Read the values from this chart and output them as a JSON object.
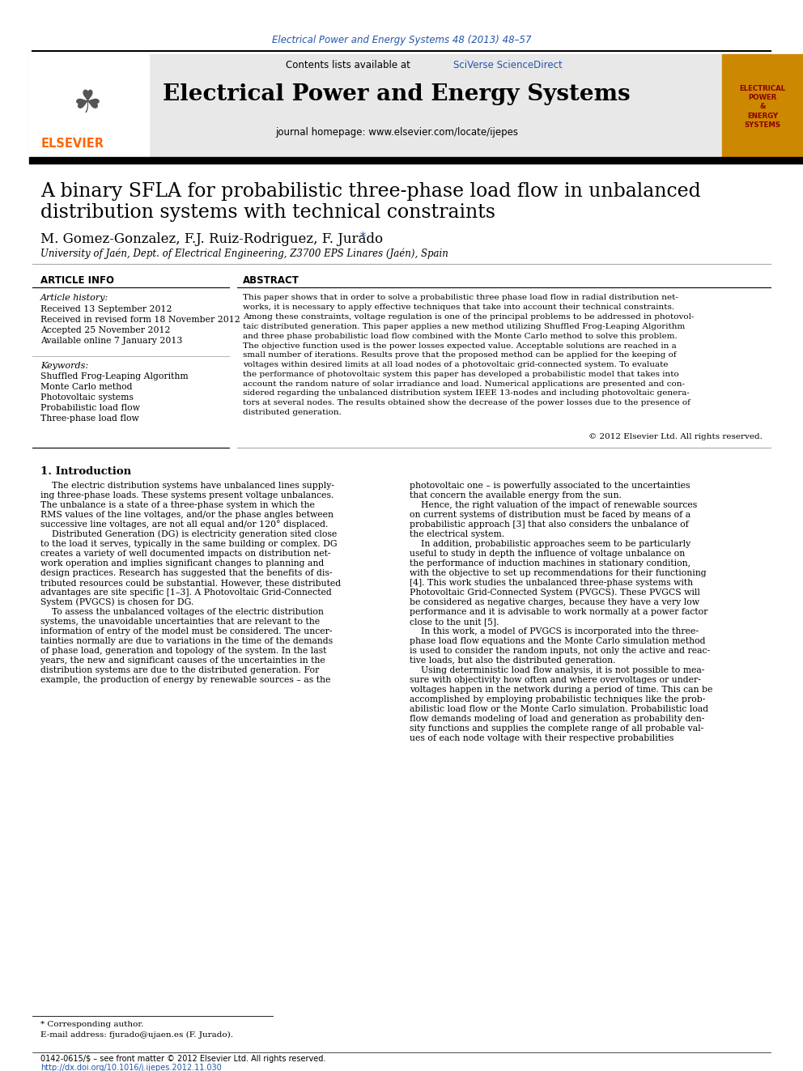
{
  "journal_ref": "Electrical Power and Energy Systems 48 (2013) 48–57",
  "journal_ref_color": "#2255aa",
  "contents_line": "Contents lists available at",
  "sciverse_text": "SciVerse ScienceDirect",
  "sciverse_color": "#2255aa",
  "journal_title": "Electrical Power and Energy Systems",
  "journal_homepage": "journal homepage: www.elsevier.com/locate/ijepes",
  "header_bg": "#e8e8e8",
  "paper_title_line1": "A binary SFLA for probabilistic three-phase load flow in unbalanced",
  "paper_title_line2": "distribution systems with technical constraints",
  "authors": "M. Gomez-Gonzalez, F.J. Ruiz-Rodriguez, F. Jurado",
  "corresponding_star": "*",
  "affiliation": "University of Jaén, Dept. of Electrical Engineering, Z3700 EPS Linares (Jaén), Spain",
  "article_info_header": "ARTICLE INFO",
  "abstract_header": "ABSTRACT",
  "article_history_label": "Article history:",
  "received": "Received 13 September 2012",
  "received_revised": "Received in revised form 18 November 2012",
  "accepted": "Accepted 25 November 2012",
  "available_online": "Available online 7 January 2013",
  "keywords_label": "Keywords:",
  "keywords": [
    "Shuffled Frog-Leaping Algorithm",
    "Monte Carlo method",
    "Photovoltaic systems",
    "Probabilistic load flow",
    "Three-phase load flow"
  ],
  "copyright": "© 2012 Elsevier Ltd. All rights reserved.",
  "intro_header": "1. Introduction",
  "footnote_star": "* Corresponding author.",
  "footnote_email": "E-mail address: fjurado@ujaen.es (F. Jurado).",
  "footer_line1": "0142-0615/$ – see front matter © 2012 Elsevier Ltd. All rights reserved.",
  "footer_line2": "http://dx.doi.org/10.1016/j.ijepes.2012.11.030",
  "footer_line2_color": "#2255aa",
  "bg_color": "#ffffff",
  "text_color": "#000000",
  "link_color": "#2255aa",
  "abstract_lines": [
    "This paper shows that in order to solve a probabilistic three phase load flow in radial distribution net-",
    "works, it is necessary to apply effective techniques that take into account their technical constraints.",
    "Among these constraints, voltage regulation is one of the principal problems to be addressed in photovol-",
    "taic distributed generation. This paper applies a new method utilizing Shuffled Frog-Leaping Algorithm",
    "and three phase probabilistic load flow combined with the Monte Carlo method to solve this problem.",
    "The objective function used is the power losses expected value. Acceptable solutions are reached in a",
    "small number of iterations. Results prove that the proposed method can be applied for the keeping of",
    "voltages within desired limits at all load nodes of a photovoltaic grid-connected system. To evaluate",
    "the performance of photovoltaic system this paper has developed a probabilistic model that takes into",
    "account the random nature of solar irradiance and load. Numerical applications are presented and con-",
    "sidered regarding the unbalanced distribution system IEEE 13-nodes and including photovoltaic genera-",
    "tors at several nodes. The results obtained show the decrease of the power losses due to the presence of",
    "distributed generation."
  ],
  "intro_c1_lines": [
    "    The electric distribution systems have unbalanced lines supply-",
    "ing three-phase loads. These systems present voltage unbalances.",
    "The unbalance is a state of a three-phase system in which the",
    "RMS values of the line voltages, and/or the phase angles between",
    "successive line voltages, are not all equal and/or 120° displaced.",
    "    Distributed Generation (DG) is electricity generation sited close",
    "to the load it serves, typically in the same building or complex. DG",
    "creates a variety of well documented impacts on distribution net-",
    "work operation and implies significant changes to planning and",
    "design practices. Research has suggested that the benefits of dis-",
    "tributed resources could be substantial. However, these distributed",
    "advantages are site specific [1–3]. A Photovoltaic Grid-Connected",
    "System (PVGCS) is chosen for DG.",
    "    To assess the unbalanced voltages of the electric distribution",
    "systems, the unavoidable uncertainties that are relevant to the",
    "information of entry of the model must be considered. The uncer-",
    "tainties normally are due to variations in the time of the demands",
    "of phase load, generation and topology of the system. In the last",
    "years, the new and significant causes of the uncertainties in the",
    "distribution systems are due to the distributed generation. For",
    "example, the production of energy by renewable sources – as the"
  ],
  "intro_c2_lines": [
    "photovoltaic one – is powerfully associated to the uncertainties",
    "that concern the available energy from the sun.",
    "    Hence, the right valuation of the impact of renewable sources",
    "on current systems of distribution must be faced by means of a",
    "probabilistic approach [3] that also considers the unbalance of",
    "the electrical system.",
    "    In addition, probabilistic approaches seem to be particularly",
    "useful to study in depth the influence of voltage unbalance on",
    "the performance of induction machines in stationary condition,",
    "with the objective to set up recommendations for their functioning",
    "[4]. This work studies the unbalanced three-phase systems with",
    "Photovoltaic Grid-Connected System (PVGCS). These PVGCS will",
    "be considered as negative charges, because they have a very low",
    "performance and it is advisable to work normally at a power factor",
    "close to the unit [5].",
    "    In this work, a model of PVGCS is incorporated into the three-",
    "phase load flow equations and the Monte Carlo simulation method",
    "is used to consider the random inputs, not only the active and reac-",
    "tive loads, but also the distributed generation.",
    "    Using deterministic load flow analysis, it is not possible to mea-",
    "sure with objectivity how often and where overvoltages or under-",
    "voltages happen in the network during a period of time. This can be",
    "accomplished by employing probabilistic techniques like the prob-",
    "abilistic load flow or the Monte Carlo simulation. Probabilistic load",
    "flow demands modeling of load and generation as probability den-",
    "sity functions and supplies the complete range of all probable val-",
    "ues of each node voltage with their respective probabilities"
  ]
}
